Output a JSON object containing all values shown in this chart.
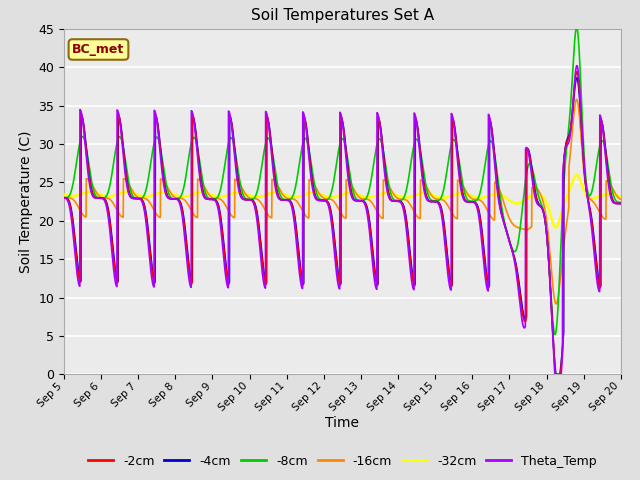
{
  "title": "Soil Temperatures Set A",
  "xlabel": "Time",
  "ylabel": "Soil Temperature (C)",
  "ylim": [
    0,
    45
  ],
  "xlim": [
    0,
    15
  ],
  "bg_color": "#e0e0e0",
  "plot_bg_color": "#ebebeb",
  "annotation_text": "BC_met",
  "annotation_box_color": "#ffff99",
  "annotation_box_edge": "#8B6914",
  "series": {
    "-2cm": {
      "color": "#ff0000",
      "lw": 1.2
    },
    "-4cm": {
      "color": "#0000cc",
      "lw": 1.2
    },
    "-8cm": {
      "color": "#00cc00",
      "lw": 1.2
    },
    "-16cm": {
      "color": "#ff8800",
      "lw": 1.2
    },
    "-32cm": {
      "color": "#ffff00",
      "lw": 1.8
    },
    "Theta_Temp": {
      "color": "#aa00ff",
      "lw": 1.2
    }
  },
  "xtick_labels": [
    "Sep 5",
    "Sep 6",
    "Sep 7",
    "Sep 8",
    "Sep 9",
    "Sep 10",
    "Sep 11",
    "Sep 12",
    "Sep 13",
    "Sep 14",
    "Sep 15",
    "Sep 16",
    "Sep 17",
    "Sep 18",
    "Sep 19",
    "Sep 20"
  ],
  "xtick_positions": [
    0,
    1,
    2,
    3,
    4,
    5,
    6,
    7,
    8,
    9,
    10,
    11,
    12,
    13,
    14,
    15
  ],
  "yticks": [
    0,
    5,
    10,
    15,
    20,
    25,
    30,
    35,
    40,
    45
  ]
}
